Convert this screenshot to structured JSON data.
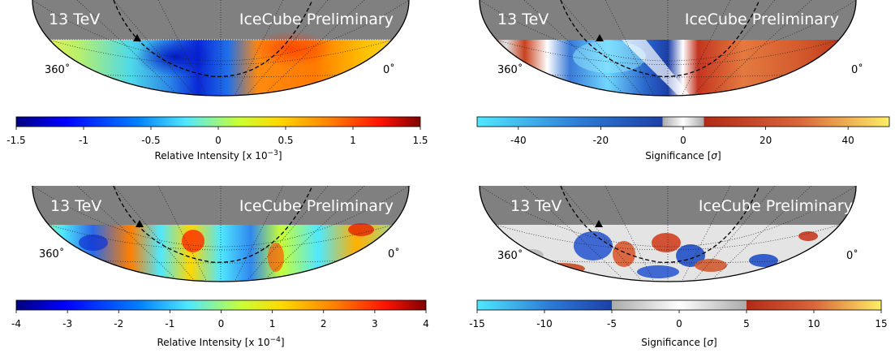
{
  "panels": [
    {
      "id": "top-left",
      "energy_label": "13 TeV",
      "watermark": "IceCube Preliminary",
      "ra_left_label": "360˚",
      "ra_right_label": "0˚",
      "colorbar": {
        "type": "rainbow",
        "label_main": "Relative Intensity [x 10",
        "label_exp": "−3",
        "label_close": "]",
        "ticks": [
          "-1.5",
          "-1",
          "-0.5",
          "0",
          "0.5",
          "1",
          "1.5"
        ]
      }
    },
    {
      "id": "top-right",
      "energy_label": "13 TeV",
      "watermark": "IceCube Preliminary",
      "ra_left_label": "360˚",
      "ra_right_label": "0˚",
      "colorbar": {
        "type": "significance",
        "label_main": "Significance [",
        "label_sigma": "σ",
        "label_close": "]",
        "ticks": [
          "-40",
          "-20",
          "0",
          "20",
          "40"
        ]
      }
    },
    {
      "id": "bottom-left",
      "energy_label": "13 TeV",
      "watermark": "IceCube Preliminary",
      "ra_left_label": "360˚",
      "ra_right_label": "0˚",
      "colorbar": {
        "type": "rainbow",
        "label_main": "Relative Intensity [x 10",
        "label_exp": "−4",
        "label_close": "]",
        "ticks": [
          "-4",
          "-3",
          "-2",
          "-1",
          "0",
          "1",
          "2",
          "3",
          "4"
        ]
      }
    },
    {
      "id": "bottom-right",
      "energy_label": "13 TeV",
      "watermark": "IceCube Preliminary",
      "ra_left_label": "360˚",
      "ra_right_label": "0˚",
      "colorbar": {
        "type": "significance",
        "label_main": "Significance [",
        "label_sigma": "σ",
        "label_close": "]",
        "ticks": [
          "-15",
          "-10",
          "-5",
          "0",
          "5",
          "10",
          "15"
        ]
      }
    }
  ],
  "chart_data": [
    {
      "type": "heatmap",
      "title": "13 TeV",
      "projection": "southern-sky half-ellipse",
      "quantity": "relative intensity",
      "colorbar_label": "Relative Intensity [x 10^-3]",
      "colorbar_range": [
        -1.5,
        1.5
      ],
      "colorbar_ticks": [
        -1.5,
        -1,
        -0.5,
        0,
        0.5,
        1,
        1.5
      ],
      "colormap": "rainbow (blue-cyan-yellow-red)"
    },
    {
      "type": "heatmap",
      "title": "13 TeV",
      "projection": "southern-sky half-ellipse",
      "quantity": "significance",
      "colorbar_label": "Significance [σ]",
      "colorbar_range": [
        -50,
        50
      ],
      "colorbar_ticks": [
        -40,
        -20,
        0,
        20,
        40
      ],
      "colormap": "diverging (cyan-blue-gray-red-yellow)"
    },
    {
      "type": "heatmap",
      "title": "13 TeV",
      "projection": "southern-sky half-ellipse",
      "quantity": "relative intensity",
      "colorbar_label": "Relative Intensity [x 10^-4]",
      "colorbar_range": [
        -4,
        4
      ],
      "colorbar_ticks": [
        -4,
        -3,
        -2,
        -1,
        0,
        1,
        2,
        3,
        4
      ],
      "colormap": "rainbow (blue-cyan-yellow-red)"
    },
    {
      "type": "heatmap",
      "title": "13 TeV",
      "projection": "southern-sky half-ellipse",
      "quantity": "significance",
      "colorbar_label": "Significance [σ]",
      "colorbar_range": [
        -15,
        15
      ],
      "colorbar_ticks": [
        -15,
        -10,
        -5,
        0,
        5,
        10,
        15
      ],
      "colormap": "diverging (cyan-blue-gray-red-yellow)"
    }
  ],
  "colors": {
    "mask_gray": "#808080",
    "rainbow": [
      "#00007f",
      "#0000ff",
      "#0080ff",
      "#4fe8ff",
      "#c8ff37",
      "#ffd800",
      "#ff7e00",
      "#ff1400",
      "#7f0000"
    ],
    "significance": [
      "#4fe8ff",
      "#2d7bd6",
      "#1c3fa8",
      "#dcdcdc",
      "#ffffff",
      "#dcdcdc",
      "#b22a16",
      "#d9643a",
      "#ffee66"
    ]
  }
}
